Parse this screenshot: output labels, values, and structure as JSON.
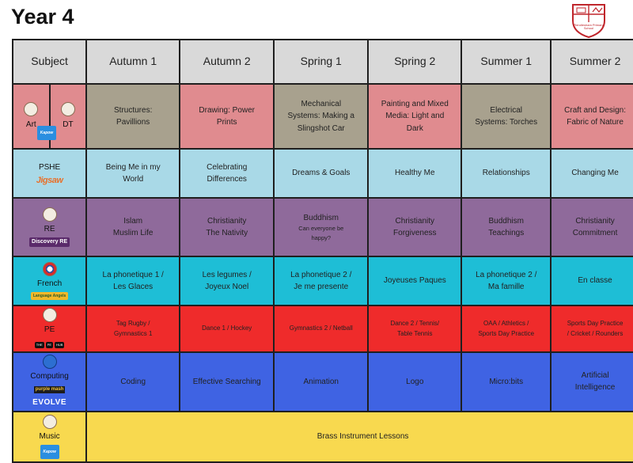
{
  "title": "Year 4",
  "crest": {
    "text": "Rendlesham Primary School",
    "color": "#c0262c"
  },
  "headers": [
    "Subject",
    "Autumn 1",
    "Autumn 2",
    "Spring 1",
    "Spring 2",
    "Summer 1",
    "Summer 2"
  ],
  "rows": {
    "art_dt": {
      "subject_left": "Art",
      "subject_right": "DT",
      "logo": "Kapow",
      "cells": [
        [
          "Structures:",
          "Pavillions"
        ],
        [
          "Drawing: Power",
          "Prints"
        ],
        [
          "Mechanical",
          "Systems: Making a",
          "Slingshot Car"
        ],
        [
          "Painting and Mixed",
          "Media: Light and",
          "Dark"
        ],
        [
          "Electrical",
          "Systems: Torches"
        ],
        [
          "Craft and Design:",
          "Fabric of Nature"
        ]
      ]
    },
    "pshe": {
      "subject": "PSHE",
      "logo": "Jigsaw",
      "cells": [
        [
          "Being Me in my",
          "World"
        ],
        [
          "Celebrating",
          "Differences"
        ],
        [
          "Dreams & Goals"
        ],
        [
          "Healthy Me"
        ],
        [
          "Relationships"
        ],
        [
          "Changing Me"
        ]
      ]
    },
    "re": {
      "subject": "RE",
      "logo": "Discovery RE",
      "cells": [
        [
          "Islam",
          "Muslim Life"
        ],
        [
          "Christianity",
          "The Nativity"
        ],
        [
          "Buddhism"
        ],
        [
          "Christianity",
          "Forgiveness"
        ],
        [
          "Buddhism",
          "Teachings"
        ],
        [
          "Christianity",
          "Commitment"
        ]
      ],
      "spring1_sub": [
        "Can everyone be",
        "happy?"
      ]
    },
    "french": {
      "subject": "French",
      "logo": "Language Angels",
      "cells": [
        [
          "La phonetique 1 /",
          "Les Glaces"
        ],
        [
          "Les legumes /",
          "Joyeux Noel"
        ],
        [
          "La phonetique 2 /",
          "Je me presente"
        ],
        [
          "Joyeuses Paques"
        ],
        [
          "La phonetique 2 /",
          "Ma famille"
        ],
        [
          "En classe"
        ]
      ]
    },
    "pe": {
      "subject": "PE",
      "logo_parts": [
        "THE",
        "PE",
        "HUB"
      ],
      "cells": [
        [
          "Tag Rugby /",
          "Gymnastics 1"
        ],
        [
          "Dance 1 / Hockey"
        ],
        [
          "Gymnastics 2 / Netball"
        ],
        [
          "Dance 2 / Tennis/",
          "Table Tennis"
        ],
        [
          "OAA / Athletics /",
          "Sports Day Practice"
        ],
        [
          "Sports Day Practice",
          "/ Cricket / Rounders"
        ]
      ]
    },
    "computing": {
      "subject": "Computing",
      "logo_left": "purple mash",
      "logo_right": "EVOLVE",
      "cells": [
        [
          "Coding"
        ],
        [
          "Effective Searching"
        ],
        [
          "Animation"
        ],
        [
          "Logo"
        ],
        [
          "Micro:bits"
        ],
        [
          "Artificial",
          "Intelligence"
        ]
      ]
    },
    "music": {
      "subject": "Music",
      "logo": "Kapow",
      "span_text": "Brass Instrument Lessons"
    }
  },
  "colors": {
    "header": "#d9d9d9",
    "art_label": "#e08b8f",
    "art_green": "#a8a18e",
    "pshe": "#a9d9e7",
    "re": "#8f6a9b",
    "french": "#1ebed6",
    "pe": "#ef2b2b",
    "computing": "#3f63e3",
    "music": "#f8d94f"
  }
}
